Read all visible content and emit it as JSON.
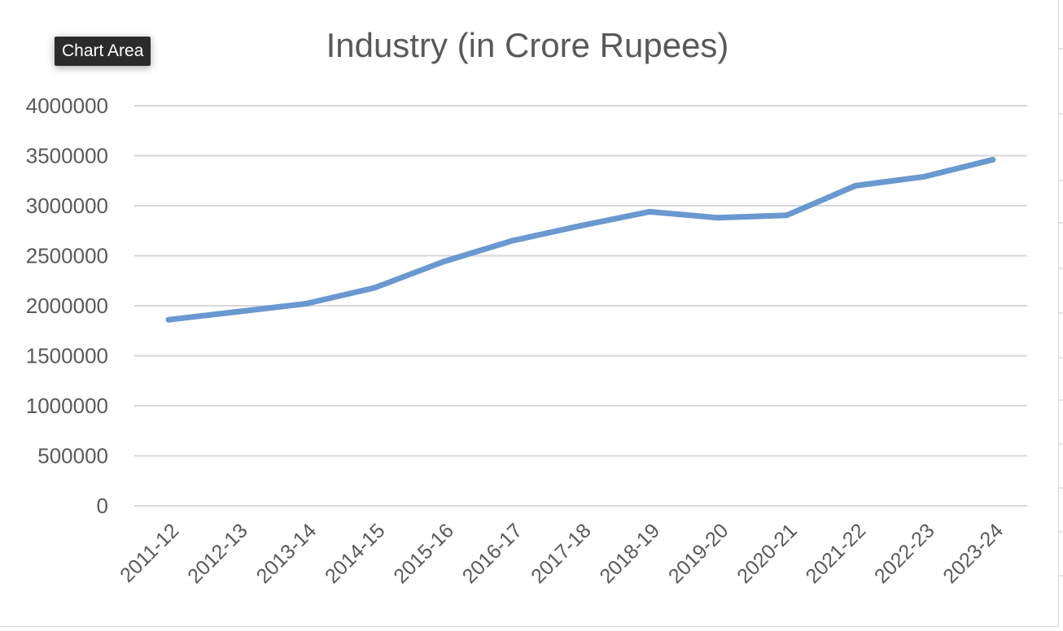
{
  "tooltip": {
    "label": "Chart Area"
  },
  "colors": {
    "line": "#6a98d0",
    "gridline": "#d9d9d9",
    "text": "#595959",
    "tooltip_bg": "#2b2b2b"
  },
  "chart_data": {
    "type": "line",
    "title": "Industry (in Crore Rupees)",
    "xlabel": "",
    "ylabel": "",
    "categories": [
      "2011-12",
      "2012-13",
      "2013-14",
      "2014-15",
      "2015-16",
      "2016-17",
      "2017-18",
      "2018-19",
      "2019-20",
      "2020-21",
      "2021-22",
      "2022-23",
      "2023-24"
    ],
    "series": [
      {
        "values": [
          1860000,
          1940000,
          2020000,
          2180000,
          2440000,
          2650000,
          2800000,
          2940000,
          2880000,
          2905000,
          3200000,
          3290000,
          3460000
        ]
      }
    ],
    "yticks": [
      "0",
      "500000",
      "1000000",
      "1500000",
      "2000000",
      "2500000",
      "3000000",
      "3500000",
      "4000000"
    ],
    "ylim": [
      0,
      4000000
    ],
    "grid": true,
    "legend": "none"
  }
}
